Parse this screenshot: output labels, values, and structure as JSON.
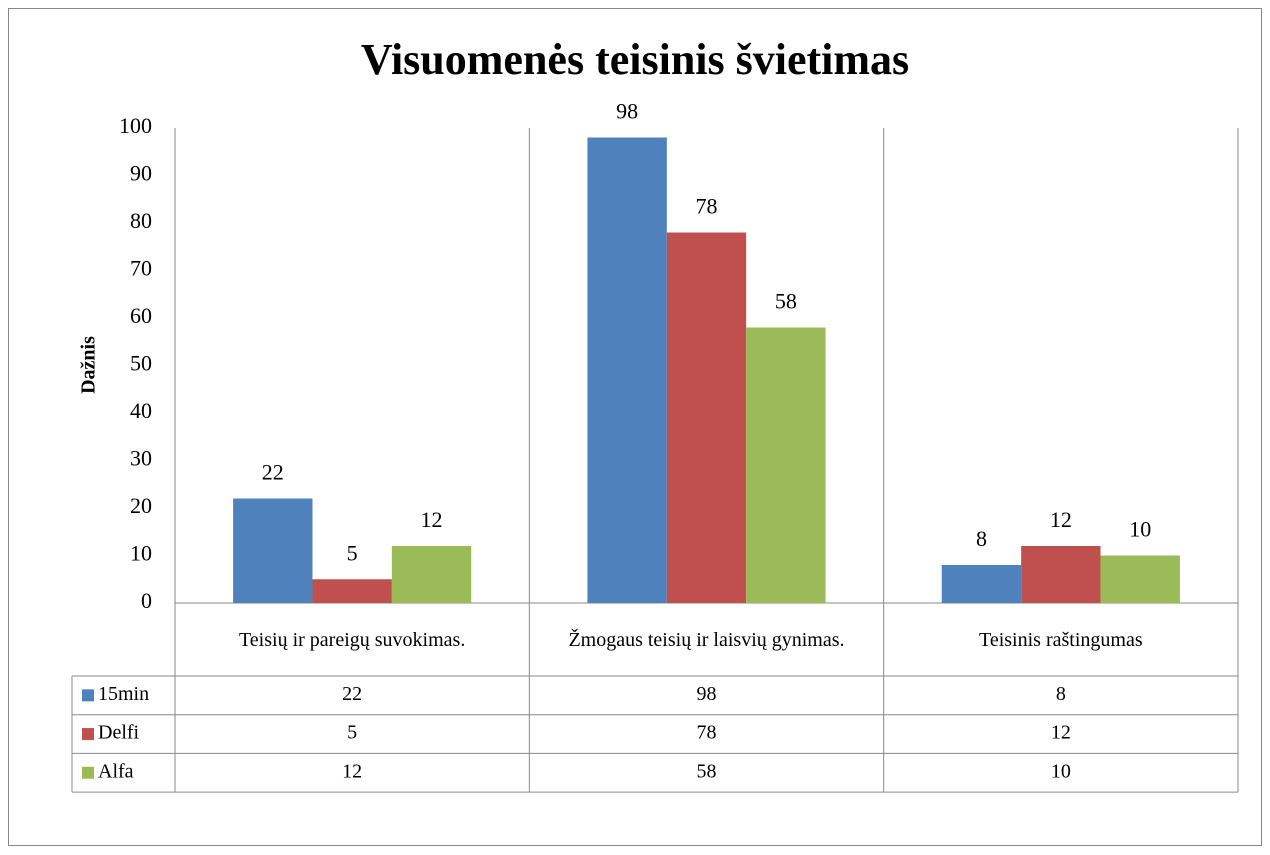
{
  "chart_data": {
    "type": "bar",
    "title": "Visuomenės teisinis švietimas",
    "y_label": "Dažnis",
    "categories": [
      "Teisių ir pareigų suvokimas.",
      "Žmogaus teisių ir laisvių gynimas.",
      "Teisinis raštingumas"
    ],
    "series": [
      {
        "name": "15min",
        "color": "#4f81bd",
        "values": [
          22,
          98,
          8
        ]
      },
      {
        "name": "Delfi",
        "color": "#c0504d",
        "values": [
          5,
          78,
          12
        ]
      },
      {
        "name": "Alfa",
        "color": "#9bbb59",
        "values": [
          12,
          58,
          10
        ]
      }
    ],
    "ylim": [
      0,
      100
    ],
    "yticks": [
      0,
      10,
      20,
      30,
      40,
      50,
      60,
      70,
      80,
      90,
      100
    ],
    "grid": false
  }
}
